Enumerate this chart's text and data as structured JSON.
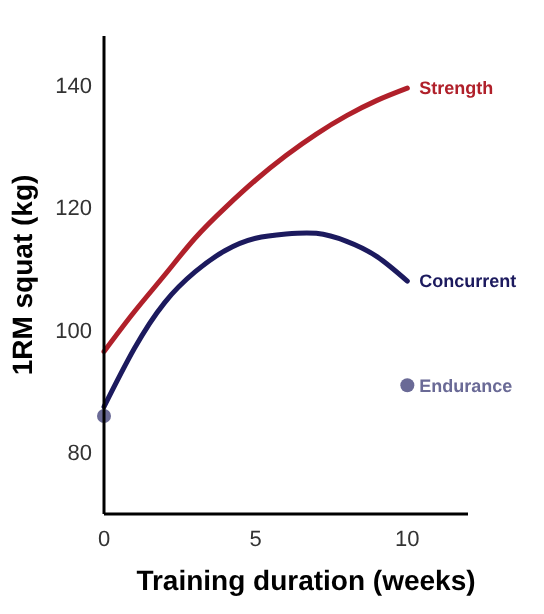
{
  "chart_data": {
    "type": "line",
    "xlabel": "Training duration (weeks)",
    "ylabel": "1RM squat (kg)",
    "x": [
      0,
      1,
      2,
      3,
      4,
      5,
      6,
      7,
      8,
      9,
      10
    ],
    "series": [
      {
        "name": "Strength",
        "color": "#b0202a",
        "values": [
          96.5,
          103,
          109,
          115,
          120,
          124.5,
          128.5,
          132,
          135,
          137.5,
          139.5
        ]
      },
      {
        "name": "Concurrent",
        "color": "#1c1a5e",
        "values": [
          87.5,
          97,
          104.5,
          109.5,
          113,
          115,
          115.7,
          115.8,
          114.5,
          112,
          108
        ]
      },
      {
        "name": "Endurance",
        "type": "scatter",
        "color": "#6a6a96",
        "x": [
          0,
          10
        ],
        "values": [
          86,
          91
        ]
      }
    ],
    "xlim": [
      0,
      12
    ],
    "ylim": [
      70,
      148
    ],
    "xticks": [
      0,
      5,
      10
    ],
    "yticks": [
      80,
      100,
      120,
      140
    ],
    "grid": false
  }
}
